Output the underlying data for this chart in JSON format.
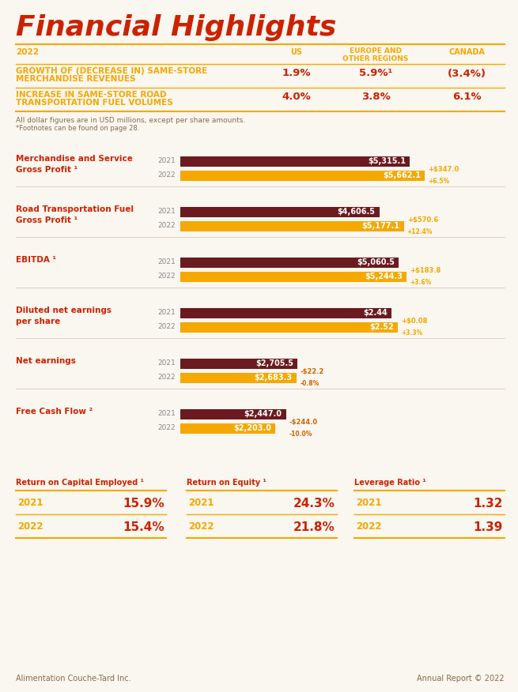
{
  "title": "Financial Highlights",
  "bg_color": "#faf6f0",
  "orange": "#f5a800",
  "dark_red": "#6b1a20",
  "red_text": "#cc2200",
  "gray_text": "#888888",
  "bar_groups": [
    {
      "label": "Merchandise and Service\nGross Profit ¹",
      "val_2021": 5315.1,
      "val_2022": 5662.1,
      "label_2021": "$5,315.1",
      "label_2022": "$5,662.1",
      "diff1": "+$347.0",
      "diff2": "+6.5%",
      "diff_color": "#f5a800",
      "max_val": 6500
    },
    {
      "label": "Road Transportation Fuel\nGross Profit ¹",
      "val_2021": 4606.5,
      "val_2022": 5177.1,
      "label_2021": "$4,606.5",
      "label_2022": "$5,177.1",
      "diff1": "+$570.6",
      "diff2": "+12.4%",
      "diff_color": "#f5a800",
      "max_val": 6500
    },
    {
      "label": "EBITDA ¹",
      "val_2021": 5060.5,
      "val_2022": 5244.3,
      "label_2021": "$5,060.5",
      "label_2022": "$5,244.3",
      "diff1": "+$183.8",
      "diff2": "+3.6%",
      "diff_color": "#f5a800",
      "max_val": 6500
    },
    {
      "label": "Diluted net earnings\nper share",
      "val_2021": 2.44,
      "val_2022": 2.52,
      "label_2021": "$2.44",
      "label_2022": "$2.52",
      "diff1": "+$0.08",
      "diff2": "+3.3%",
      "diff_color": "#f5a800",
      "max_val": 3.25
    },
    {
      "label": "Net earnings",
      "val_2021": 2705.5,
      "val_2022": 2683.3,
      "label_2021": "$2,705.5",
      "label_2022": "$2,683.3",
      "diff1": "-$22.2",
      "diff2": "-0.8%",
      "diff_color": "#cc6600",
      "max_val": 6500
    },
    {
      "label": "Free Cash Flow ²",
      "val_2021": 2447.0,
      "val_2022": 2203.0,
      "label_2021": "$2,447.0",
      "label_2022": "$2,203.0",
      "diff1": "-$244.0",
      "diff2": "-10.0%",
      "diff_color": "#cc6600",
      "max_val": 6500
    }
  ],
  "metrics": [
    {
      "title": "Return on Capital Employed ¹",
      "val_2021": "15.9%",
      "val_2022": "15.4%"
    },
    {
      "title": "Return on Equity ¹",
      "val_2021": "24.3%",
      "val_2022": "21.8%"
    },
    {
      "title": "Leverage Ratio ¹",
      "val_2021": "1.32",
      "val_2022": "1.39"
    }
  ],
  "table_row1_label1": "GROWTH OF (DECREASE IN) SAME-STORE",
  "table_row1_label2": "MERCHANDISE REVENUES",
  "table_row2_label1": "INCREASE IN SAME-STORE ROAD",
  "table_row2_label2": "TRANSPORTATION FUEL VOLUMES",
  "table_row1_vals": [
    "1.9%",
    "5.9%¹",
    "(3.4%)"
  ],
  "table_row2_vals": [
    "4.0%",
    "3.8%",
    "6.1%"
  ],
  "footnote1": "All dollar figures are in USD millions, except per share amounts.",
  "footnote2": "*Footnotes can be found on page 28.",
  "footer_left": "Alimentation Couche-Tard Inc.",
  "footer_right": "Annual Report © 2022"
}
